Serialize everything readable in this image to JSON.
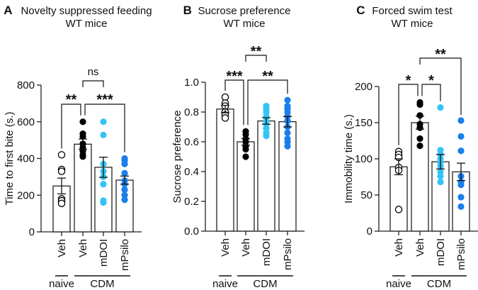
{
  "chart_data": [
    {
      "type": "bar",
      "panel_letter": "A",
      "title": "Novelty suppressed feeding",
      "subtitle": "WT mice",
      "ylabel": "Time to first bite (s.)",
      "ylim": [
        0,
        800
      ],
      "yticks": [
        0,
        200,
        400,
        600,
        800
      ],
      "categories": [
        "Veh",
        "Veh",
        "mDOI",
        "mPsilo"
      ],
      "groups": [
        {
          "label": "naive",
          "span": [
            0,
            0
          ]
        },
        {
          "label": "CDM",
          "span": [
            1,
            3
          ]
        }
      ],
      "series": [
        {
          "name": "naive Veh",
          "mean": 250,
          "sem": 43,
          "color": "#000000",
          "filled": false,
          "points": [
            420,
            340,
            330,
            180,
            170,
            155
          ]
        },
        {
          "name": "CDM Veh",
          "mean": 478,
          "sem": 28,
          "color": "#000000",
          "filled": true,
          "points": [
            600,
            535,
            520,
            480,
            460,
            440,
            420,
            410
          ]
        },
        {
          "name": "CDM mDOI",
          "mean": 352,
          "sem": 55,
          "color": "#33C4F5",
          "filled": true,
          "points": [
            600,
            528,
            370,
            330,
            300,
            260,
            170,
            160
          ]
        },
        {
          "name": "CDM mPsilo",
          "mean": 282,
          "sem": 22,
          "color": "#1A7FEA",
          "filled": true,
          "points": [
            400,
            390,
            370,
            320,
            280,
            260,
            230,
            200,
            175
          ]
        }
      ],
      "brackets": [
        {
          "from": 0,
          "to": 1,
          "label": "**"
        },
        {
          "from": 1,
          "to": 3,
          "label": "***"
        },
        {
          "from": 1,
          "to": 2,
          "label": "ns"
        }
      ]
    },
    {
      "type": "bar",
      "panel_letter": "B",
      "title": "Sucrose preference",
      "subtitle": "WT mice",
      "ylabel": "Sucrose preference",
      "ylim": [
        0,
        1.0
      ],
      "yticks": [
        "0.0",
        "0.2",
        "0.4",
        "0.6",
        "0.8",
        "1.0"
      ],
      "categories": [
        "Veh",
        "Veh",
        "mDOI",
        "mPsilo"
      ],
      "groups": [
        {
          "label": "naive",
          "span": [
            0,
            0
          ]
        },
        {
          "label": "CDM",
          "span": [
            1,
            3
          ]
        }
      ],
      "series": [
        {
          "name": "naive Veh",
          "mean": 0.82,
          "sem": 0.025,
          "color": "#000000",
          "filled": false,
          "points": [
            0.9,
            0.86,
            0.84,
            0.8,
            0.78,
            0.76
          ]
        },
        {
          "name": "CDM Veh",
          "mean": 0.6,
          "sem": 0.022,
          "color": "#000000",
          "filled": true,
          "points": [
            0.67,
            0.65,
            0.62,
            0.6,
            0.57,
            0.55,
            0.5
          ]
        },
        {
          "name": "CDM mDOI",
          "mean": 0.74,
          "sem": 0.022,
          "color": "#33C4F5",
          "filled": true,
          "points": [
            0.84,
            0.82,
            0.8,
            0.77,
            0.74,
            0.72,
            0.69,
            0.66,
            0.64
          ]
        },
        {
          "name": "CDM mPsilo",
          "mean": 0.735,
          "sem": 0.035,
          "color": "#1A7FEA",
          "filled": true,
          "points": [
            0.88,
            0.84,
            0.82,
            0.8,
            0.77,
            0.74,
            0.7,
            0.66,
            0.62,
            0.6,
            0.57
          ]
        }
      ],
      "brackets": [
        {
          "from": 0,
          "to": 1,
          "label": "***"
        },
        {
          "from": 1,
          "to": 3,
          "label": "**"
        },
        {
          "from": 1,
          "to": 2,
          "label": "**"
        }
      ]
    },
    {
      "type": "bar",
      "panel_letter": "C",
      "title": "Forced swim test",
      "subtitle": "WT mice",
      "ylabel": "Immobility time (s.)",
      "ylim": [
        0,
        200
      ],
      "yticks": [
        0,
        50,
        100,
        150,
        200
      ],
      "categories": [
        "Veh",
        "Veh",
        "mDOI",
        "mPsilo"
      ],
      "groups": [
        {
          "label": "naive",
          "span": [
            0,
            0
          ]
        },
        {
          "label": "CDM",
          "span": [
            1,
            3
          ]
        }
      ],
      "series": [
        {
          "name": "naive Veh",
          "mean": 89,
          "sem": 11,
          "color": "#000000",
          "filled": false,
          "points": [
            110,
            106,
            102,
            88,
            84,
            30
          ]
        },
        {
          "name": "CDM Veh",
          "mean": 150,
          "sem": 9,
          "color": "#000000",
          "filled": true,
          "points": [
            178,
            175,
            160,
            148,
            143,
            128,
            118
          ]
        },
        {
          "name": "CDM mDOI",
          "mean": 96,
          "sem": 10,
          "color": "#33C4F5",
          "filled": true,
          "points": [
            171,
            112,
            106,
            100,
            95,
            90,
            82,
            76,
            68
          ]
        },
        {
          "name": "CDM mPsilo",
          "mean": 82,
          "sem": 12,
          "color": "#1A7FEA",
          "filled": true,
          "points": [
            153,
            131,
            111,
            76,
            68,
            64,
            47,
            34
          ]
        }
      ],
      "brackets": [
        {
          "from": 0,
          "to": 1,
          "label": "*"
        },
        {
          "from": 1,
          "to": 2,
          "label": "*"
        },
        {
          "from": 1,
          "to": 3,
          "label": "**"
        }
      ]
    }
  ]
}
